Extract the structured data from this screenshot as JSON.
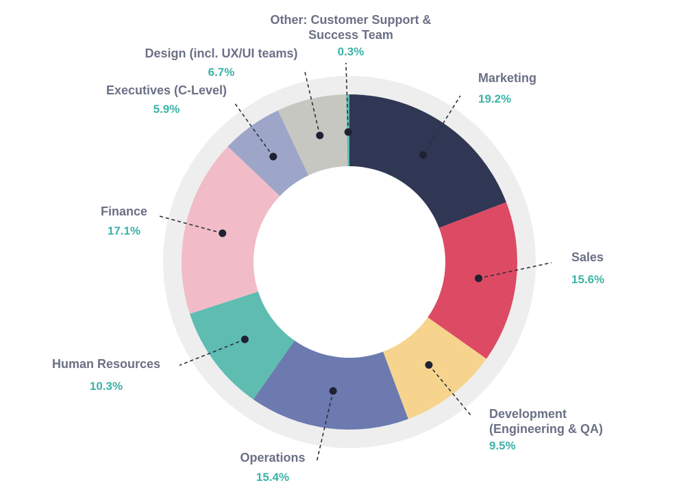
{
  "chart_data": {
    "type": "pie",
    "variant": "donut",
    "start_angle_deg": 0,
    "direction": "clockwise",
    "slices": [
      {
        "key": "marketing",
        "name_lines": [
          "Marketing"
        ],
        "label": "Marketing",
        "value": 19.2,
        "pct_text": "19.2%",
        "color": "#303754"
      },
      {
        "key": "sales",
        "name_lines": [
          "Sales"
        ],
        "label": "Sales",
        "value": 15.6,
        "pct_text": "15.6%",
        "color": "#dc4a64"
      },
      {
        "key": "development",
        "name_lines": [
          "Development",
          "(Engineering & QA)"
        ],
        "label": "Development (Engineering & QA)",
        "value": 9.5,
        "pct_text": "9.5%",
        "color": "#f6d48e"
      },
      {
        "key": "operations",
        "name_lines": [
          "Operations"
        ],
        "label": "Operations",
        "value": 15.4,
        "pct_text": "15.4%",
        "color": "#6c7ab0"
      },
      {
        "key": "hr",
        "name_lines": [
          "Human Resources"
        ],
        "label": "Human Resources",
        "value": 10.3,
        "pct_text": "10.3%",
        "color": "#5ebcb1"
      },
      {
        "key": "finance",
        "name_lines": [
          "Finance"
        ],
        "label": "Finance",
        "value": 17.1,
        "pct_text": "17.1%",
        "color": "#f1bcc7"
      },
      {
        "key": "executives",
        "name_lines": [
          "Executives (C-Level)"
        ],
        "label": "Executives (C-Level)",
        "value": 5.9,
        "pct_text": "5.9%",
        "color": "#9da6c8"
      },
      {
        "key": "design",
        "name_lines": [
          "Design (incl. UX/UI teams)"
        ],
        "label": "Design (incl. UX/UI teams)",
        "value": 6.7,
        "pct_text": "6.7%",
        "color": "#c7c7c2"
      },
      {
        "key": "other",
        "name_lines": [
          "Other: Customer Support &",
          "Success Team"
        ],
        "label": "Other: Customer Support & Success Team",
        "value": 0.3,
        "pct_text": "0.3%",
        "color": "#5ebcb1"
      }
    ],
    "colors": {
      "outer_ring": "#eeeeee",
      "label_text": "#6a7085",
      "percent_text": "#3bb3a6",
      "leader": "#2b2f3a"
    }
  }
}
